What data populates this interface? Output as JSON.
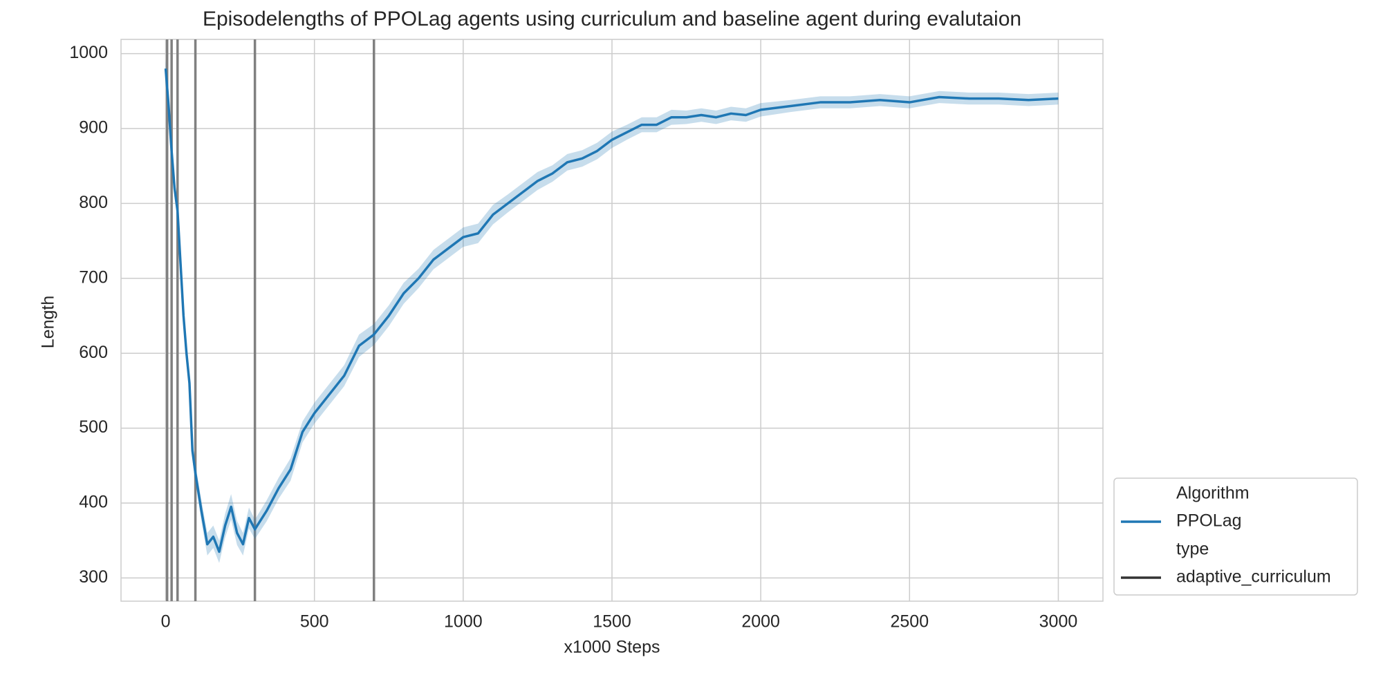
{
  "chart_data": {
    "type": "line",
    "title": "Episodelengths of PPOLag agents using curriculum and baseline agent during evalutaion",
    "xlabel": "x1000 Steps",
    "ylabel": "Length",
    "xlim": [
      -150,
      3150
    ],
    "ylim": [
      269,
      1019
    ],
    "xticks": [
      0,
      500,
      1000,
      1500,
      2000,
      2500,
      3000
    ],
    "yticks": [
      300,
      400,
      500,
      600,
      700,
      800,
      900,
      1000
    ],
    "grid": true,
    "legend_position": "lower right",
    "legend_title": "Algorithm",
    "vlines": {
      "color": "#808080",
      "values": [
        5,
        20,
        40,
        100,
        300,
        700
      ]
    },
    "x": [
      0,
      10,
      20,
      30,
      40,
      50,
      60,
      70,
      80,
      90,
      100,
      120,
      140,
      160,
      180,
      200,
      220,
      240,
      260,
      280,
      300,
      340,
      380,
      420,
      460,
      500,
      550,
      600,
      650,
      700,
      750,
      800,
      850,
      900,
      950,
      1000,
      1050,
      1100,
      1150,
      1200,
      1250,
      1300,
      1350,
      1400,
      1450,
      1500,
      1550,
      1600,
      1650,
      1700,
      1750,
      1800,
      1850,
      1900,
      1950,
      2000,
      2100,
      2200,
      2300,
      2400,
      2500,
      2600,
      2700,
      2800,
      2900,
      3000
    ],
    "series": [
      {
        "name": "PPOLag",
        "color": "#1f77b4",
        "values": [
          980,
          930,
          870,
          820,
          790,
          720,
          650,
          600,
          560,
          470,
          440,
          390,
          345,
          355,
          335,
          370,
          395,
          360,
          345,
          380,
          365,
          390,
          420,
          445,
          495,
          520,
          545,
          570,
          610,
          625,
          650,
          680,
          700,
          725,
          740,
          755,
          760,
          785,
          800,
          815,
          830,
          840,
          855,
          860,
          870,
          885,
          895,
          905,
          905,
          915,
          915,
          918,
          915,
          920,
          918,
          925,
          930,
          935,
          935,
          938,
          935,
          942,
          940,
          940,
          938,
          940
        ],
        "lower": [
          968,
          916,
          856,
          808,
          776,
          706,
          636,
          588,
          548,
          458,
          428,
          376,
          330,
          340,
          320,
          354,
          378,
          344,
          330,
          366,
          352,
          376,
          406,
          430,
          481,
          506,
          531,
          556,
          595,
          611,
          636,
          666,
          687,
          712,
          727,
          742,
          747,
          772,
          788,
          803,
          818,
          829,
          844,
          849,
          859,
          874,
          885,
          895,
          895,
          905,
          906,
          909,
          906,
          911,
          909,
          916,
          922,
          927,
          927,
          930,
          927,
          934,
          932,
          932,
          930,
          932
        ],
        "upper": [
          992,
          944,
          884,
          832,
          804,
          734,
          664,
          612,
          572,
          482,
          452,
          404,
          360,
          370,
          350,
          386,
          412,
          376,
          360,
          394,
          378,
          404,
          434,
          460,
          509,
          534,
          559,
          584,
          625,
          639,
          664,
          694,
          713,
          738,
          753,
          768,
          773,
          798,
          812,
          827,
          842,
          851,
          866,
          871,
          881,
          896,
          905,
          915,
          915,
          925,
          924,
          927,
          924,
          929,
          927,
          934,
          938,
          943,
          943,
          946,
          943,
          950,
          948,
          948,
          946,
          948
        ]
      }
    ],
    "style_legend": {
      "title": "type",
      "entries": [
        {
          "name": "adaptive_curriculum",
          "color": "#333333"
        }
      ]
    }
  }
}
